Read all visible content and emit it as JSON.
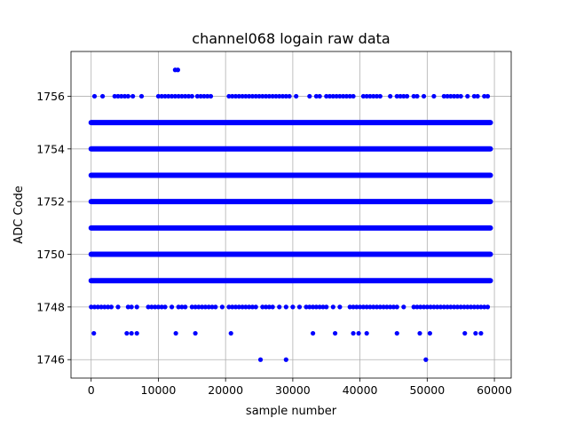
{
  "chart_data": {
    "type": "scatter",
    "title": "channel068 logain raw data",
    "xlabel": "sample number",
    "ylabel": "ADC Code",
    "xlim": [
      -3000,
      62500
    ],
    "ylim": [
      1745.3,
      1757.7
    ],
    "xticks": [
      0,
      10000,
      20000,
      30000,
      40000,
      50000,
      60000
    ],
    "xtick_labels": [
      "0",
      "10000",
      "20000",
      "30000",
      "40000",
      "50000",
      "60000"
    ],
    "yticks": [
      1746,
      1748,
      1750,
      1752,
      1754,
      1756
    ],
    "ytick_labels": [
      "1746",
      "1748",
      "1750",
      "1752",
      "1754",
      "1756"
    ],
    "grid": true,
    "marker_color": "#0000ff",
    "x_extent": [
      0,
      59400
    ],
    "dense_levels": [
      1749,
      1750,
      1751,
      1752,
      1753,
      1754,
      1755
    ],
    "series": [
      {
        "points": [
          [
            12500,
            1757
          ],
          [
            12900,
            1757
          ],
          [
            500,
            1756
          ],
          [
            1700,
            1756
          ],
          [
            3500,
            1756
          ],
          [
            4000,
            1756
          ],
          [
            4500,
            1756
          ],
          [
            5000,
            1756
          ],
          [
            5500,
            1756
          ],
          [
            6200,
            1756
          ],
          [
            7500,
            1756
          ],
          [
            10000,
            1756
          ],
          [
            10500,
            1756
          ],
          [
            11000,
            1756
          ],
          [
            11500,
            1756
          ],
          [
            12000,
            1756
          ],
          [
            12500,
            1756
          ],
          [
            13000,
            1756
          ],
          [
            13500,
            1756
          ],
          [
            14000,
            1756
          ],
          [
            14500,
            1756
          ],
          [
            15000,
            1756
          ],
          [
            15800,
            1756
          ],
          [
            16300,
            1756
          ],
          [
            16800,
            1756
          ],
          [
            17300,
            1756
          ],
          [
            17800,
            1756
          ],
          [
            20500,
            1756
          ],
          [
            21000,
            1756
          ],
          [
            21500,
            1756
          ],
          [
            22000,
            1756
          ],
          [
            22500,
            1756
          ],
          [
            23000,
            1756
          ],
          [
            23500,
            1756
          ],
          [
            24000,
            1756
          ],
          [
            24500,
            1756
          ],
          [
            25000,
            1756
          ],
          [
            25500,
            1756
          ],
          [
            26000,
            1756
          ],
          [
            26500,
            1756
          ],
          [
            27000,
            1756
          ],
          [
            27500,
            1756
          ],
          [
            28000,
            1756
          ],
          [
            28500,
            1756
          ],
          [
            29000,
            1756
          ],
          [
            29500,
            1756
          ],
          [
            30500,
            1756
          ],
          [
            32500,
            1756
          ],
          [
            33500,
            1756
          ],
          [
            34000,
            1756
          ],
          [
            35000,
            1756
          ],
          [
            35500,
            1756
          ],
          [
            36000,
            1756
          ],
          [
            36500,
            1756
          ],
          [
            37000,
            1756
          ],
          [
            37500,
            1756
          ],
          [
            38000,
            1756
          ],
          [
            38500,
            1756
          ],
          [
            39000,
            1756
          ],
          [
            40500,
            1756
          ],
          [
            41000,
            1756
          ],
          [
            41500,
            1756
          ],
          [
            42000,
            1756
          ],
          [
            42500,
            1756
          ],
          [
            43000,
            1756
          ],
          [
            44500,
            1756
          ],
          [
            45500,
            1756
          ],
          [
            46000,
            1756
          ],
          [
            46500,
            1756
          ],
          [
            47000,
            1756
          ],
          [
            48000,
            1756
          ],
          [
            48500,
            1756
          ],
          [
            49500,
            1756
          ],
          [
            51000,
            1756
          ],
          [
            52500,
            1756
          ],
          [
            53000,
            1756
          ],
          [
            53500,
            1756
          ],
          [
            54000,
            1756
          ],
          [
            54500,
            1756
          ],
          [
            55000,
            1756
          ],
          [
            56000,
            1756
          ],
          [
            57000,
            1756
          ],
          [
            57500,
            1756
          ],
          [
            58500,
            1756
          ],
          [
            59000,
            1756
          ],
          [
            0,
            1748
          ],
          [
            500,
            1748
          ],
          [
            1000,
            1748
          ],
          [
            1500,
            1748
          ],
          [
            2000,
            1748
          ],
          [
            2500,
            1748
          ],
          [
            3000,
            1748
          ],
          [
            4000,
            1748
          ],
          [
            5500,
            1748
          ],
          [
            6000,
            1748
          ],
          [
            6800,
            1748
          ],
          [
            8500,
            1748
          ],
          [
            9000,
            1748
          ],
          [
            9500,
            1748
          ],
          [
            10000,
            1748
          ],
          [
            10500,
            1748
          ],
          [
            11000,
            1748
          ],
          [
            12000,
            1748
          ],
          [
            13000,
            1748
          ],
          [
            13500,
            1748
          ],
          [
            14000,
            1748
          ],
          [
            15000,
            1748
          ],
          [
            15500,
            1748
          ],
          [
            16000,
            1748
          ],
          [
            16500,
            1748
          ],
          [
            17000,
            1748
          ],
          [
            17500,
            1748
          ],
          [
            18000,
            1748
          ],
          [
            18500,
            1748
          ],
          [
            19500,
            1748
          ],
          [
            20500,
            1748
          ],
          [
            21000,
            1748
          ],
          [
            21500,
            1748
          ],
          [
            22000,
            1748
          ],
          [
            22500,
            1748
          ],
          [
            23000,
            1748
          ],
          [
            23500,
            1748
          ],
          [
            24000,
            1748
          ],
          [
            24500,
            1748
          ],
          [
            25500,
            1748
          ],
          [
            26000,
            1748
          ],
          [
            26500,
            1748
          ],
          [
            27000,
            1748
          ],
          [
            28000,
            1748
          ],
          [
            29000,
            1748
          ],
          [
            30000,
            1748
          ],
          [
            31000,
            1748
          ],
          [
            32000,
            1748
          ],
          [
            32500,
            1748
          ],
          [
            33000,
            1748
          ],
          [
            33500,
            1748
          ],
          [
            34000,
            1748
          ],
          [
            34500,
            1748
          ],
          [
            35000,
            1748
          ],
          [
            36000,
            1748
          ],
          [
            37000,
            1748
          ],
          [
            38500,
            1748
          ],
          [
            39000,
            1748
          ],
          [
            39500,
            1748
          ],
          [
            40000,
            1748
          ],
          [
            40500,
            1748
          ],
          [
            41000,
            1748
          ],
          [
            41500,
            1748
          ],
          [
            42000,
            1748
          ],
          [
            42500,
            1748
          ],
          [
            43000,
            1748
          ],
          [
            43500,
            1748
          ],
          [
            44000,
            1748
          ],
          [
            44500,
            1748
          ],
          [
            45000,
            1748
          ],
          [
            45500,
            1748
          ],
          [
            46500,
            1748
          ],
          [
            48000,
            1748
          ],
          [
            48500,
            1748
          ],
          [
            49000,
            1748
          ],
          [
            49500,
            1748
          ],
          [
            50000,
            1748
          ],
          [
            50500,
            1748
          ],
          [
            51000,
            1748
          ],
          [
            51500,
            1748
          ],
          [
            52000,
            1748
          ],
          [
            52500,
            1748
          ],
          [
            53000,
            1748
          ],
          [
            53500,
            1748
          ],
          [
            54000,
            1748
          ],
          [
            54500,
            1748
          ],
          [
            55000,
            1748
          ],
          [
            55500,
            1748
          ],
          [
            56000,
            1748
          ],
          [
            56500,
            1748
          ],
          [
            57000,
            1748
          ],
          [
            57500,
            1748
          ],
          [
            58000,
            1748
          ],
          [
            58500,
            1748
          ],
          [
            59000,
            1748
          ],
          [
            400,
            1747
          ],
          [
            5300,
            1747
          ],
          [
            6000,
            1747
          ],
          [
            6800,
            1747
          ],
          [
            12600,
            1747
          ],
          [
            15500,
            1747
          ],
          [
            20800,
            1747
          ],
          [
            33000,
            1747
          ],
          [
            36300,
            1747
          ],
          [
            39000,
            1747
          ],
          [
            39800,
            1747
          ],
          [
            41000,
            1747
          ],
          [
            45500,
            1747
          ],
          [
            48900,
            1747
          ],
          [
            50400,
            1747
          ],
          [
            55600,
            1747
          ],
          [
            57200,
            1747
          ],
          [
            58000,
            1747
          ],
          [
            25200,
            1746
          ],
          [
            29000,
            1746
          ],
          [
            49800,
            1746
          ]
        ]
      }
    ]
  }
}
